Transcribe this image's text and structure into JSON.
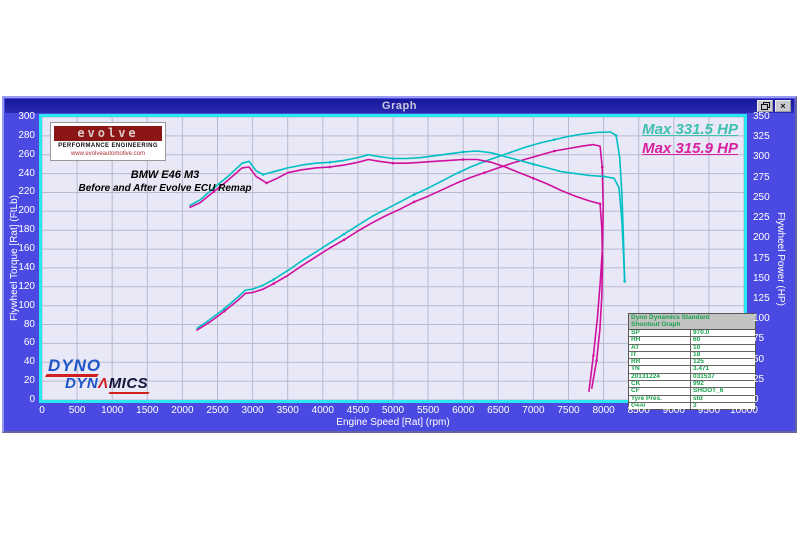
{
  "window": {
    "title": "Graph",
    "restore_label": "restore",
    "close_label": "×"
  },
  "branding": {
    "evolve_name": "evolve",
    "evolve_sub": "PERFORMANCE ENGINEERING",
    "evolve_url": "www.evolveautomotive.com",
    "annotation_line1": "BMW E46 M3",
    "annotation_line2": "Before and After Evolve ECU Remap",
    "dyno_line1": "DYNO",
    "dyno_line2_prefix": "DYN",
    "dyno_line2_accent": "Λ",
    "dyno_line2_suffix": "MICS"
  },
  "legend": [
    {
      "label": "Max 331.5 HP",
      "color": "#3fbfae"
    },
    {
      "label": "Max 315.9 HP",
      "color": "#d8219f"
    }
  ],
  "info_table": {
    "header_line1": "Dyno Dynamics Standard",
    "header_line2": "Shootout Graph",
    "rows": [
      [
        "SP",
        "970.0"
      ],
      [
        "RH",
        "60"
      ],
      [
        "AT",
        "10"
      ],
      [
        "IT",
        "18"
      ],
      [
        "RR",
        "125"
      ],
      [
        "TN",
        "3.471"
      ],
      [
        "20131224",
        "031537"
      ],
      [
        "CK",
        "992"
      ],
      [
        "CF",
        "SHOOT_6"
      ],
      [
        "Tyre Pres.",
        "std"
      ],
      [
        "Gear",
        "3"
      ]
    ]
  },
  "chart_data": {
    "type": "line",
    "title": "Graph",
    "xlabel": "Engine Speed [Rat] (rpm)",
    "ylabel_left": "Flywheel Torque [Rat] (FtLb)",
    "ylabel_right": "Flywheel Power (HP)",
    "xlim": [
      0,
      10000
    ],
    "left_ylim": [
      0,
      300
    ],
    "right_ylim": [
      0,
      350
    ],
    "grid": true,
    "legend_position": "top-right",
    "x_ticks": [
      0,
      500,
      1000,
      1500,
      2000,
      2500,
      3000,
      3500,
      4000,
      4500,
      5000,
      5500,
      6000,
      6500,
      7000,
      7500,
      8000,
      8500,
      9000,
      9500,
      10000
    ],
    "left_ticks": [
      0,
      20,
      40,
      60,
      80,
      100,
      120,
      140,
      160,
      180,
      200,
      220,
      240,
      260,
      280,
      300
    ],
    "right_ticks": [
      0,
      25,
      50,
      75,
      100,
      125,
      150,
      175,
      200,
      225,
      250,
      275,
      300,
      325,
      350
    ],
    "series": [
      {
        "name": "power-after-remap",
        "axis": "right",
        "color": "#00bfc4",
        "max": 331.5,
        "unit": "HP",
        "points": [
          [
            2200,
            88
          ],
          [
            2400,
            100
          ],
          [
            2600,
            113
          ],
          [
            2800,
            128
          ],
          [
            2900,
            136
          ],
          [
            3000,
            137
          ],
          [
            3150,
            142
          ],
          [
            3300,
            149
          ],
          [
            3500,
            160
          ],
          [
            3700,
            172
          ],
          [
            3900,
            183
          ],
          [
            4100,
            194
          ],
          [
            4300,
            205
          ],
          [
            4500,
            216
          ],
          [
            4700,
            227
          ],
          [
            4900,
            236
          ],
          [
            5100,
            245
          ],
          [
            5300,
            254
          ],
          [
            5500,
            262
          ],
          [
            5700,
            271
          ],
          [
            5900,
            280
          ],
          [
            6100,
            288
          ],
          [
            6300,
            295
          ],
          [
            6500,
            301
          ],
          [
            6700,
            307
          ],
          [
            6900,
            313
          ],
          [
            7100,
            318
          ],
          [
            7300,
            322
          ],
          [
            7500,
            326
          ],
          [
            7700,
            329
          ],
          [
            7900,
            331
          ],
          [
            8100,
            331.5
          ],
          [
            8180,
            327
          ],
          [
            8230,
            300
          ],
          [
            8260,
            255
          ],
          [
            8280,
            205
          ],
          [
            8300,
            145
          ]
        ]
      },
      {
        "name": "power-before-remap",
        "axis": "right",
        "color": "#cf109e",
        "max": 315.9,
        "unit": "HP",
        "points": [
          [
            2200,
            86
          ],
          [
            2400,
            97
          ],
          [
            2600,
            110
          ],
          [
            2800,
            124
          ],
          [
            2900,
            132
          ],
          [
            3000,
            133
          ],
          [
            3150,
            137
          ],
          [
            3300,
            144
          ],
          [
            3500,
            154
          ],
          [
            3700,
            166
          ],
          [
            3900,
            177
          ],
          [
            4100,
            188
          ],
          [
            4300,
            198
          ],
          [
            4500,
            209
          ],
          [
            4700,
            219
          ],
          [
            4900,
            228
          ],
          [
            5100,
            236
          ],
          [
            5300,
            245
          ],
          [
            5500,
            252
          ],
          [
            5700,
            260
          ],
          [
            5900,
            268
          ],
          [
            6100,
            275
          ],
          [
            6300,
            281
          ],
          [
            6500,
            287
          ],
          [
            6700,
            293
          ],
          [
            6900,
            298
          ],
          [
            7100,
            303
          ],
          [
            7300,
            308
          ],
          [
            7500,
            311
          ],
          [
            7700,
            314
          ],
          [
            7850,
            315.9
          ],
          [
            7950,
            314
          ],
          [
            7980,
            288
          ],
          [
            7995,
            240
          ],
          [
            7985,
            190
          ],
          [
            7955,
            148
          ],
          [
            7910,
            100
          ],
          [
            7855,
            55
          ],
          [
            7790,
            10
          ]
        ]
      },
      {
        "name": "torque-after-remap",
        "axis": "left",
        "color": "#00bfc4",
        "unit": "FtLb",
        "points": [
          [
            2100,
            206
          ],
          [
            2250,
            212
          ],
          [
            2450,
            225
          ],
          [
            2650,
            237
          ],
          [
            2850,
            251
          ],
          [
            2950,
            253
          ],
          [
            3050,
            243
          ],
          [
            3150,
            239
          ],
          [
            3300,
            242
          ],
          [
            3500,
            246
          ],
          [
            3700,
            249
          ],
          [
            3900,
            251
          ],
          [
            4100,
            252
          ],
          [
            4300,
            254
          ],
          [
            4500,
            257
          ],
          [
            4650,
            260
          ],
          [
            4800,
            258
          ],
          [
            5000,
            256
          ],
          [
            5200,
            256
          ],
          [
            5400,
            257
          ],
          [
            5600,
            259
          ],
          [
            5800,
            261
          ],
          [
            6000,
            263
          ],
          [
            6200,
            264
          ],
          [
            6400,
            262
          ],
          [
            6600,
            258
          ],
          [
            6800,
            254
          ],
          [
            7000,
            250
          ],
          [
            7200,
            246
          ],
          [
            7400,
            242
          ],
          [
            7600,
            240
          ],
          [
            7800,
            238
          ],
          [
            8000,
            237
          ],
          [
            8150,
            235
          ],
          [
            8220,
            225
          ],
          [
            8260,
            190
          ],
          [
            8285,
            152
          ],
          [
            8300,
            126
          ]
        ]
      },
      {
        "name": "torque-before-remap",
        "axis": "left",
        "color": "#cf109e",
        "unit": "FtLb",
        "points": [
          [
            2100,
            204
          ],
          [
            2250,
            209
          ],
          [
            2450,
            221
          ],
          [
            2650,
            233
          ],
          [
            2850,
            246
          ],
          [
            2950,
            247
          ],
          [
            3050,
            237
          ],
          [
            3200,
            230
          ],
          [
            3350,
            235
          ],
          [
            3500,
            241
          ],
          [
            3700,
            244
          ],
          [
            3900,
            246
          ],
          [
            4100,
            247
          ],
          [
            4300,
            249
          ],
          [
            4500,
            252
          ],
          [
            4650,
            255
          ],
          [
            4800,
            253
          ],
          [
            5000,
            251
          ],
          [
            5200,
            251
          ],
          [
            5400,
            252
          ],
          [
            5600,
            253
          ],
          [
            5800,
            254
          ],
          [
            6000,
            255
          ],
          [
            6200,
            255
          ],
          [
            6400,
            252
          ],
          [
            6600,
            247
          ],
          [
            6800,
            241
          ],
          [
            7000,
            235
          ],
          [
            7200,
            229
          ],
          [
            7400,
            222
          ],
          [
            7600,
            216
          ],
          [
            7800,
            211
          ],
          [
            7950,
            208
          ],
          [
            7975,
            182
          ],
          [
            7985,
            148
          ],
          [
            7975,
            110
          ],
          [
            7948,
            75
          ],
          [
            7900,
            42
          ],
          [
            7830,
            12
          ]
        ]
      }
    ]
  }
}
